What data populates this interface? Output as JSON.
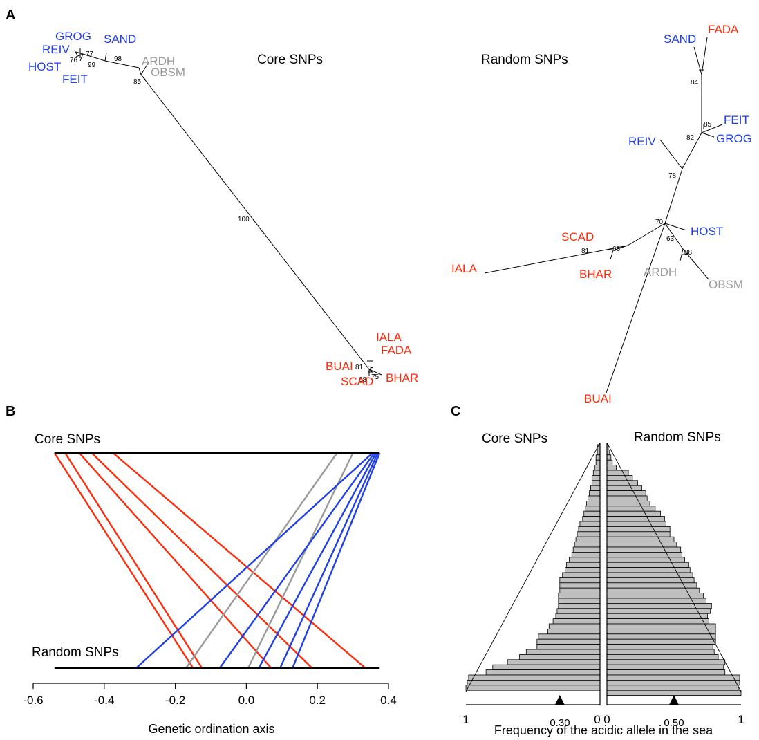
{
  "colors": {
    "blue": "#1f3fe6",
    "red": "#ff2a0a",
    "gray": "#999999",
    "black": "#000000",
    "bar": "#bfbfbf"
  },
  "panel_a": {
    "letter": "A",
    "core": {
      "title": "Core SNPs",
      "leaves": [
        {
          "name": "GROG",
          "group": "blue"
        },
        {
          "name": "SAND",
          "group": "blue"
        },
        {
          "name": "REIV",
          "group": "blue"
        },
        {
          "name": "HOST",
          "group": "blue"
        },
        {
          "name": "FEIT",
          "group": "blue"
        },
        {
          "name": "ARDH",
          "group": "gray"
        },
        {
          "name": "OBSM",
          "group": "gray"
        },
        {
          "name": "IALA",
          "group": "red"
        },
        {
          "name": "FADA",
          "group": "red"
        },
        {
          "name": "BUAI",
          "group": "red"
        },
        {
          "name": "SCAD",
          "group": "red"
        },
        {
          "name": "BHAR",
          "group": "red"
        }
      ],
      "bootstraps": [
        "77",
        "76",
        "99",
        "98",
        "85",
        "100",
        "81",
        "75",
        "68"
      ]
    },
    "random": {
      "title": "Random SNPs",
      "leaves": [
        {
          "name": "SAND",
          "group": "blue"
        },
        {
          "name": "FADA",
          "group": "red"
        },
        {
          "name": "FEIT",
          "group": "blue"
        },
        {
          "name": "GROG",
          "group": "blue"
        },
        {
          "name": "REIV",
          "group": "blue"
        },
        {
          "name": "HOST",
          "group": "blue"
        },
        {
          "name": "SCAD",
          "group": "red"
        },
        {
          "name": "IALA",
          "group": "red"
        },
        {
          "name": "BHAR",
          "group": "red"
        },
        {
          "name": "ARDH",
          "group": "gray"
        },
        {
          "name": "OBSM",
          "group": "gray"
        },
        {
          "name": "BUAI",
          "group": "red"
        }
      ],
      "bootstraps": [
        "84",
        "85",
        "82",
        "78",
        "70",
        "63",
        "66",
        "81",
        "88"
      ]
    }
  },
  "panel_b": {
    "letter": "B",
    "top_label": "Core SNPs",
    "bottom_label": "Random SNPs",
    "xlabel": "Genetic ordination axis",
    "ticks": [
      "-0.6",
      "-0.4",
      "-0.2",
      "0.0",
      "0.2",
      "0.4"
    ]
  },
  "panel_c": {
    "letter": "C",
    "left_title": "Core SNPs",
    "right_title": "Random SNPs",
    "left_marker_label": "0.30",
    "right_marker_label": "0.50",
    "left_ticks": [
      "1",
      "0"
    ],
    "right_ticks": [
      "0",
      "1"
    ],
    "xlabel": "Frequency of the acidic allele in the sea"
  },
  "chart_data": [
    {
      "type": "line",
      "title": "",
      "xlabel": "Genetic ordination axis",
      "ylabel": "",
      "xlim": [
        -0.6,
        0.4
      ],
      "x_ticks": [
        -0.6,
        -0.4,
        -0.2,
        0.0,
        0.2,
        0.4
      ],
      "levels": [
        "Core SNPs",
        "Random SNPs"
      ],
      "segments": [
        {
          "group": "red",
          "core": -0.54,
          "random": -0.15
        },
        {
          "group": "red",
          "core": -0.51,
          "random": -0.125
        },
        {
          "group": "red",
          "core": -0.47,
          "random": 0.07
        },
        {
          "group": "red",
          "core": -0.435,
          "random": 0.185
        },
        {
          "group": "red",
          "core": -0.375,
          "random": 0.335
        },
        {
          "group": "gray",
          "core": 0.255,
          "random": -0.17
        },
        {
          "group": "gray",
          "core": 0.3,
          "random": 0.005
        },
        {
          "group": "blue",
          "core": 0.355,
          "random": -0.31
        },
        {
          "group": "blue",
          "core": 0.36,
          "random": -0.075
        },
        {
          "group": "blue",
          "core": 0.365,
          "random": 0.035
        },
        {
          "group": "blue",
          "core": 0.37,
          "random": 0.095
        },
        {
          "group": "blue",
          "core": 0.375,
          "random": 0.13
        }
      ]
    },
    {
      "type": "bar",
      "title": "",
      "xlabel": "Frequency of the acidic allele in the sea",
      "series": [
        {
          "name": "Core SNPs",
          "xlim": [
            0,
            1
          ],
          "marker": 0.3,
          "values": [
            0.02,
            0.02,
            0.03,
            0.03,
            0.04,
            0.05,
            0.06,
            0.06,
            0.07,
            0.08,
            0.09,
            0.1,
            0.11,
            0.12,
            0.13,
            0.15,
            0.16,
            0.17,
            0.18,
            0.19,
            0.2,
            0.21,
            0.23,
            0.25,
            0.26,
            0.28,
            0.3,
            0.3,
            0.3,
            0.31,
            0.31,
            0.31,
            0.32,
            0.33,
            0.35,
            0.38,
            0.39,
            0.46,
            0.47,
            0.47,
            0.55,
            0.6,
            0.69,
            0.8,
            0.85,
            0.98,
            0.99,
            1.0
          ]
        },
        {
          "name": "Random SNPs",
          "xlim": [
            0,
            1
          ],
          "marker": 0.5,
          "values": [
            0.01,
            0.02,
            0.03,
            0.04,
            0.07,
            0.16,
            0.19,
            0.23,
            0.26,
            0.29,
            0.3,
            0.32,
            0.36,
            0.4,
            0.43,
            0.44,
            0.47,
            0.47,
            0.5,
            0.52,
            0.55,
            0.56,
            0.58,
            0.61,
            0.62,
            0.64,
            0.65,
            0.67,
            0.69,
            0.72,
            0.74,
            0.78,
            0.77,
            0.75,
            0.76,
            0.81,
            0.81,
            0.81,
            0.81,
            0.79,
            0.8,
            0.83,
            0.88,
            0.87,
            0.88,
            0.99,
            0.99,
            0.98,
            1.0
          ]
        }
      ]
    }
  ]
}
